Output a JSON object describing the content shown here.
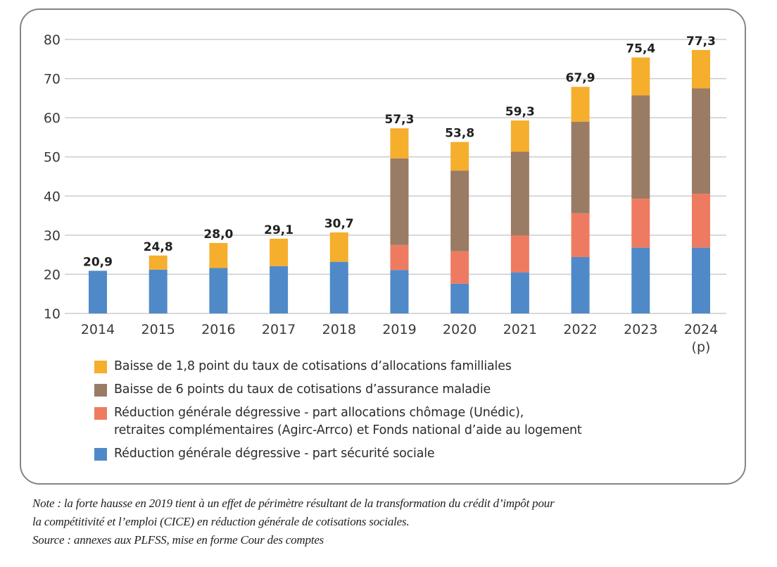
{
  "chart_data": {
    "type": "bar",
    "stacked": true,
    "title": "",
    "xlabel": "",
    "ylabel": "",
    "ylim": [
      10,
      80
    ],
    "yticks": [
      10,
      20,
      30,
      40,
      50,
      60,
      70,
      80
    ],
    "grid": true,
    "legend_position": "bottom",
    "categories": [
      "2014",
      "2015",
      "2016",
      "2017",
      "2018",
      "2019",
      "2020",
      "2021",
      "2022",
      "2023",
      "2024"
    ],
    "category_sublabels": [
      "",
      "",
      "",
      "",
      "",
      "",
      "",
      "",
      "",
      "",
      "(p)"
    ],
    "series": [
      {
        "name": "Réduction générale dégressive - part sécurité sociale",
        "color": "#5089c8",
        "values": [
          20.9,
          21.2,
          21.6,
          22.1,
          23.2,
          21.1,
          17.6,
          20.5,
          24.4,
          26.8,
          26.8
        ]
      },
      {
        "name": "Réduction générale dégressive - part allocations chômage (Unédic),\nretraites complémentaires (Agirc-Arrco) et Fonds national d’aide au logement",
        "color": "#ee7b61",
        "values": [
          0,
          0,
          0,
          0,
          0,
          6.4,
          8.3,
          9.4,
          11.2,
          12.5,
          13.8
        ]
      },
      {
        "name": "Baisse de 6 points du taux de cotisations d’assurance maladie",
        "color": "#9a7b64",
        "values": [
          0,
          0,
          0,
          0,
          0,
          22.1,
          20.6,
          21.4,
          23.4,
          26.4,
          26.9
        ]
      },
      {
        "name": "Baisse de 1,8 point du taux de cotisations d’allocations familliales",
        "color": "#f6ae2d",
        "values": [
          0,
          3.6,
          6.4,
          7.0,
          7.5,
          7.7,
          7.3,
          8.0,
          8.9,
          9.7,
          9.8
        ]
      }
    ],
    "totals": [
      20.9,
      24.8,
      28.0,
      29.1,
      30.7,
      57.3,
      53.8,
      59.3,
      67.9,
      75.4,
      77.3
    ],
    "total_labels": [
      "20,9",
      "24,8",
      "28,0",
      "29,1",
      "30,7",
      "57,3",
      "53,8",
      "59,3",
      "67,9",
      "75,4",
      "77,3"
    ]
  },
  "legend": [
    {
      "label": "Baisse de 1,8 point du taux de cotisations d’allocations familliales",
      "color": "#f6ae2d"
    },
    {
      "label": "Baisse de 6 points du taux de cotisations d’assurance maladie",
      "color": "#9a7b64"
    },
    {
      "label": "Réduction générale dégressive - part allocations chômage (Unédic),\nretraites complémentaires (Agirc-Arrco) et Fonds national d’aide au logement",
      "color": "#ee7b61"
    },
    {
      "label": "Réduction générale dégressive - part sécurité sociale",
      "color": "#5089c8"
    }
  ],
  "notes": {
    "line1": "Note : la forte hausse en 2019 tient à un effet de périmètre résultant de la transformation du crédit d’impôt pour",
    "line2": "la compétitivité et l’emploi (CICE) en réduction générale de cotisations sociales.",
    "source": "Source : annexes aux PLFSS, mise en forme Cour des comptes"
  }
}
